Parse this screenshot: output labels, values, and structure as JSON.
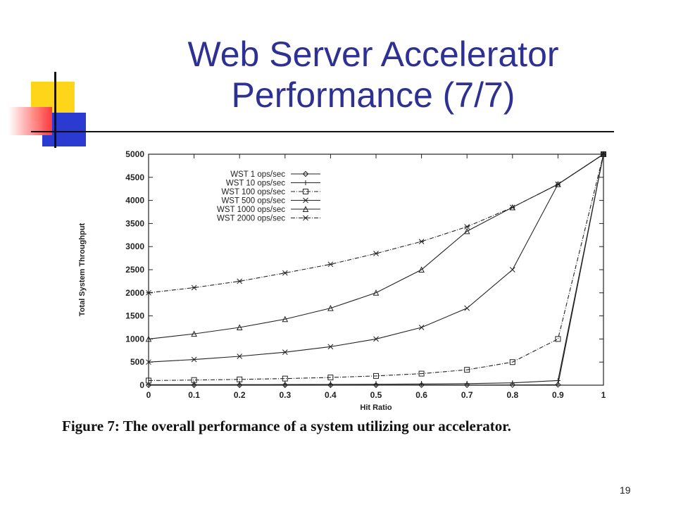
{
  "slide": {
    "title_line1": "Web Server Accelerator",
    "title_line2": "Performance (7/7)",
    "caption": "Figure 7:  The overall performance of a system utilizing our accelerator.",
    "slide_number": "19",
    "colors": {
      "title": "#2e3192",
      "accent_yellow": "#ffd51a",
      "accent_blue": "#2b3bd1",
      "accent_red": "#ff3a3a"
    }
  },
  "chart_data": {
    "type": "line",
    "title": "",
    "xlabel": "Hit Ratio",
    "ylabel": "Total System Throughput",
    "xlim": [
      0,
      1
    ],
    "ylim": [
      0,
      5000
    ],
    "xticks": [
      "0",
      "0.1",
      "0.2",
      "0.3",
      "0.4",
      "0.5",
      "0.6",
      "0.7",
      "0.8",
      "0.9",
      "1"
    ],
    "yticks": [
      "0",
      "500",
      "1000",
      "1500",
      "2000",
      "2500",
      "3000",
      "3500",
      "4000",
      "4500",
      "5000"
    ],
    "legend_position": "top-left",
    "grid": false,
    "x": [
      0,
      0.1,
      0.2,
      0.3,
      0.4,
      0.5,
      0.6,
      0.7,
      0.8,
      0.9,
      1.0
    ],
    "series": [
      {
        "name": "WST    1 ops/sec",
        "marker": "diamond",
        "dash": "solid",
        "values": [
          1,
          1,
          1,
          2,
          2,
          2,
          3,
          4,
          5,
          10,
          5000
        ]
      },
      {
        "name": "WST    10 ops/sec",
        "marker": "plus",
        "dash": "solid",
        "values": [
          10,
          11,
          12,
          14,
          17,
          20,
          25,
          33,
          50,
          100,
          5000
        ]
      },
      {
        "name": "WST  100 ops/sec",
        "marker": "square",
        "dash": "dashdot",
        "values": [
          100,
          111,
          125,
          143,
          167,
          200,
          250,
          333,
          500,
          1000,
          5000
        ]
      },
      {
        "name": "WST  500 ops/sec",
        "marker": "x",
        "dash": "solid",
        "values": [
          500,
          556,
          625,
          714,
          833,
          1000,
          1250,
          1667,
          2500,
          4350,
          5000
        ]
      },
      {
        "name": "WST 1000 ops/sec",
        "marker": "triangle",
        "dash": "solid",
        "values": [
          1000,
          1111,
          1250,
          1429,
          1667,
          2000,
          2500,
          3333,
          3850,
          4350,
          5000
        ]
      },
      {
        "name": "WST 2000 ops/sec",
        "marker": "star",
        "dash": "dashdot",
        "values": [
          2000,
          2111,
          2250,
          2429,
          2617,
          2850,
          3110,
          3430,
          3850,
          4350,
          5000
        ]
      }
    ]
  }
}
